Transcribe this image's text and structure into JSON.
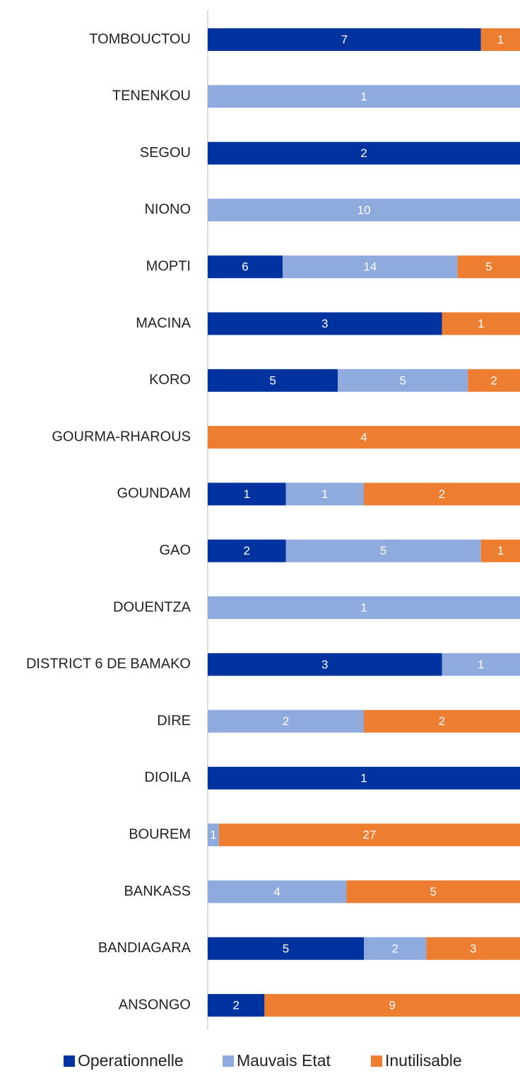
{
  "chart_data": {
    "type": "stacked_bar_100",
    "categories": [
      "TOMBOUCTOU",
      "TENENKOU",
      "SEGOU",
      "NIONO",
      "MOPTI",
      "MACINA",
      "KORO",
      "GOURMA-RHAROUS",
      "GOUNDAM",
      "GAO",
      "DOUENTZA",
      "DISTRICT 6 DE BAMAKO",
      "DIRE",
      "DIOILA",
      "BOUREM",
      "BANKASS",
      "BANDIAGARA",
      "ANSONGO"
    ],
    "series": [
      {
        "name": "Operationnelle",
        "color": "#0033a0",
        "values": [
          7,
          null,
          2,
          null,
          6,
          3,
          5,
          null,
          1,
          2,
          null,
          3,
          null,
          1,
          null,
          null,
          5,
          2
        ]
      },
      {
        "name": "Mauvais Etat",
        "color": "#8faadc",
        "values": [
          null,
          1,
          null,
          10,
          14,
          null,
          5,
          null,
          1,
          5,
          1,
          1,
          2,
          null,
          1,
          4,
          2,
          null
        ]
      },
      {
        "name": "Inutilisable",
        "color": "#ed7d31",
        "values": [
          1,
          null,
          null,
          null,
          5,
          1,
          2,
          4,
          2,
          1,
          null,
          null,
          2,
          null,
          27,
          5,
          3,
          9
        ]
      }
    ],
    "legend": "bottom"
  }
}
